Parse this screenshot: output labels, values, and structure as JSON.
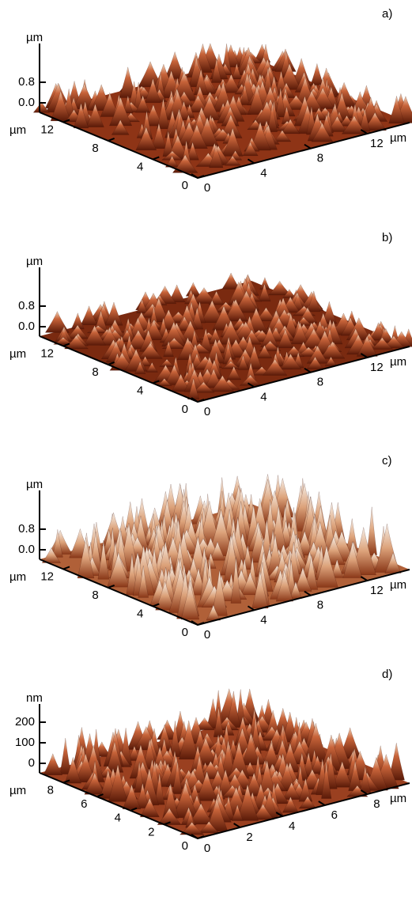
{
  "panels": [
    {
      "label": "a)",
      "z_unit": "µm",
      "z_ticks": [
        "0.8",
        "0.0"
      ],
      "y_unit": "µm",
      "y_ticks": [
        "12",
        "8",
        "4",
        "0"
      ],
      "x_ticks": [
        "0",
        "4",
        "8",
        "12"
      ],
      "x_unit": "µm"
    },
    {
      "label": "b)",
      "z_unit": "µm",
      "z_ticks": [
        "0.8",
        "0.0"
      ],
      "y_unit": "µm",
      "y_ticks": [
        "12",
        "8",
        "4",
        "0"
      ],
      "x_ticks": [
        "0",
        "4",
        "8",
        "12"
      ],
      "x_unit": "µm"
    },
    {
      "label": "c)",
      "z_unit": "µm",
      "z_ticks": [
        "0.8",
        "0.0"
      ],
      "y_unit": "µm",
      "y_ticks": [
        "12",
        "8",
        "4",
        "0"
      ],
      "x_ticks": [
        "0",
        "4",
        "8",
        "12"
      ],
      "x_unit": "µm"
    },
    {
      "label": "d)",
      "z_unit": "nm",
      "z_ticks": [
        "200",
        "100",
        "0"
      ],
      "y_unit": "µm",
      "y_ticks": [
        "8",
        "6",
        "4",
        "2",
        "0"
      ],
      "x_ticks": [
        "0",
        "2",
        "4",
        "6",
        "8"
      ],
      "x_unit": "µm"
    }
  ]
}
